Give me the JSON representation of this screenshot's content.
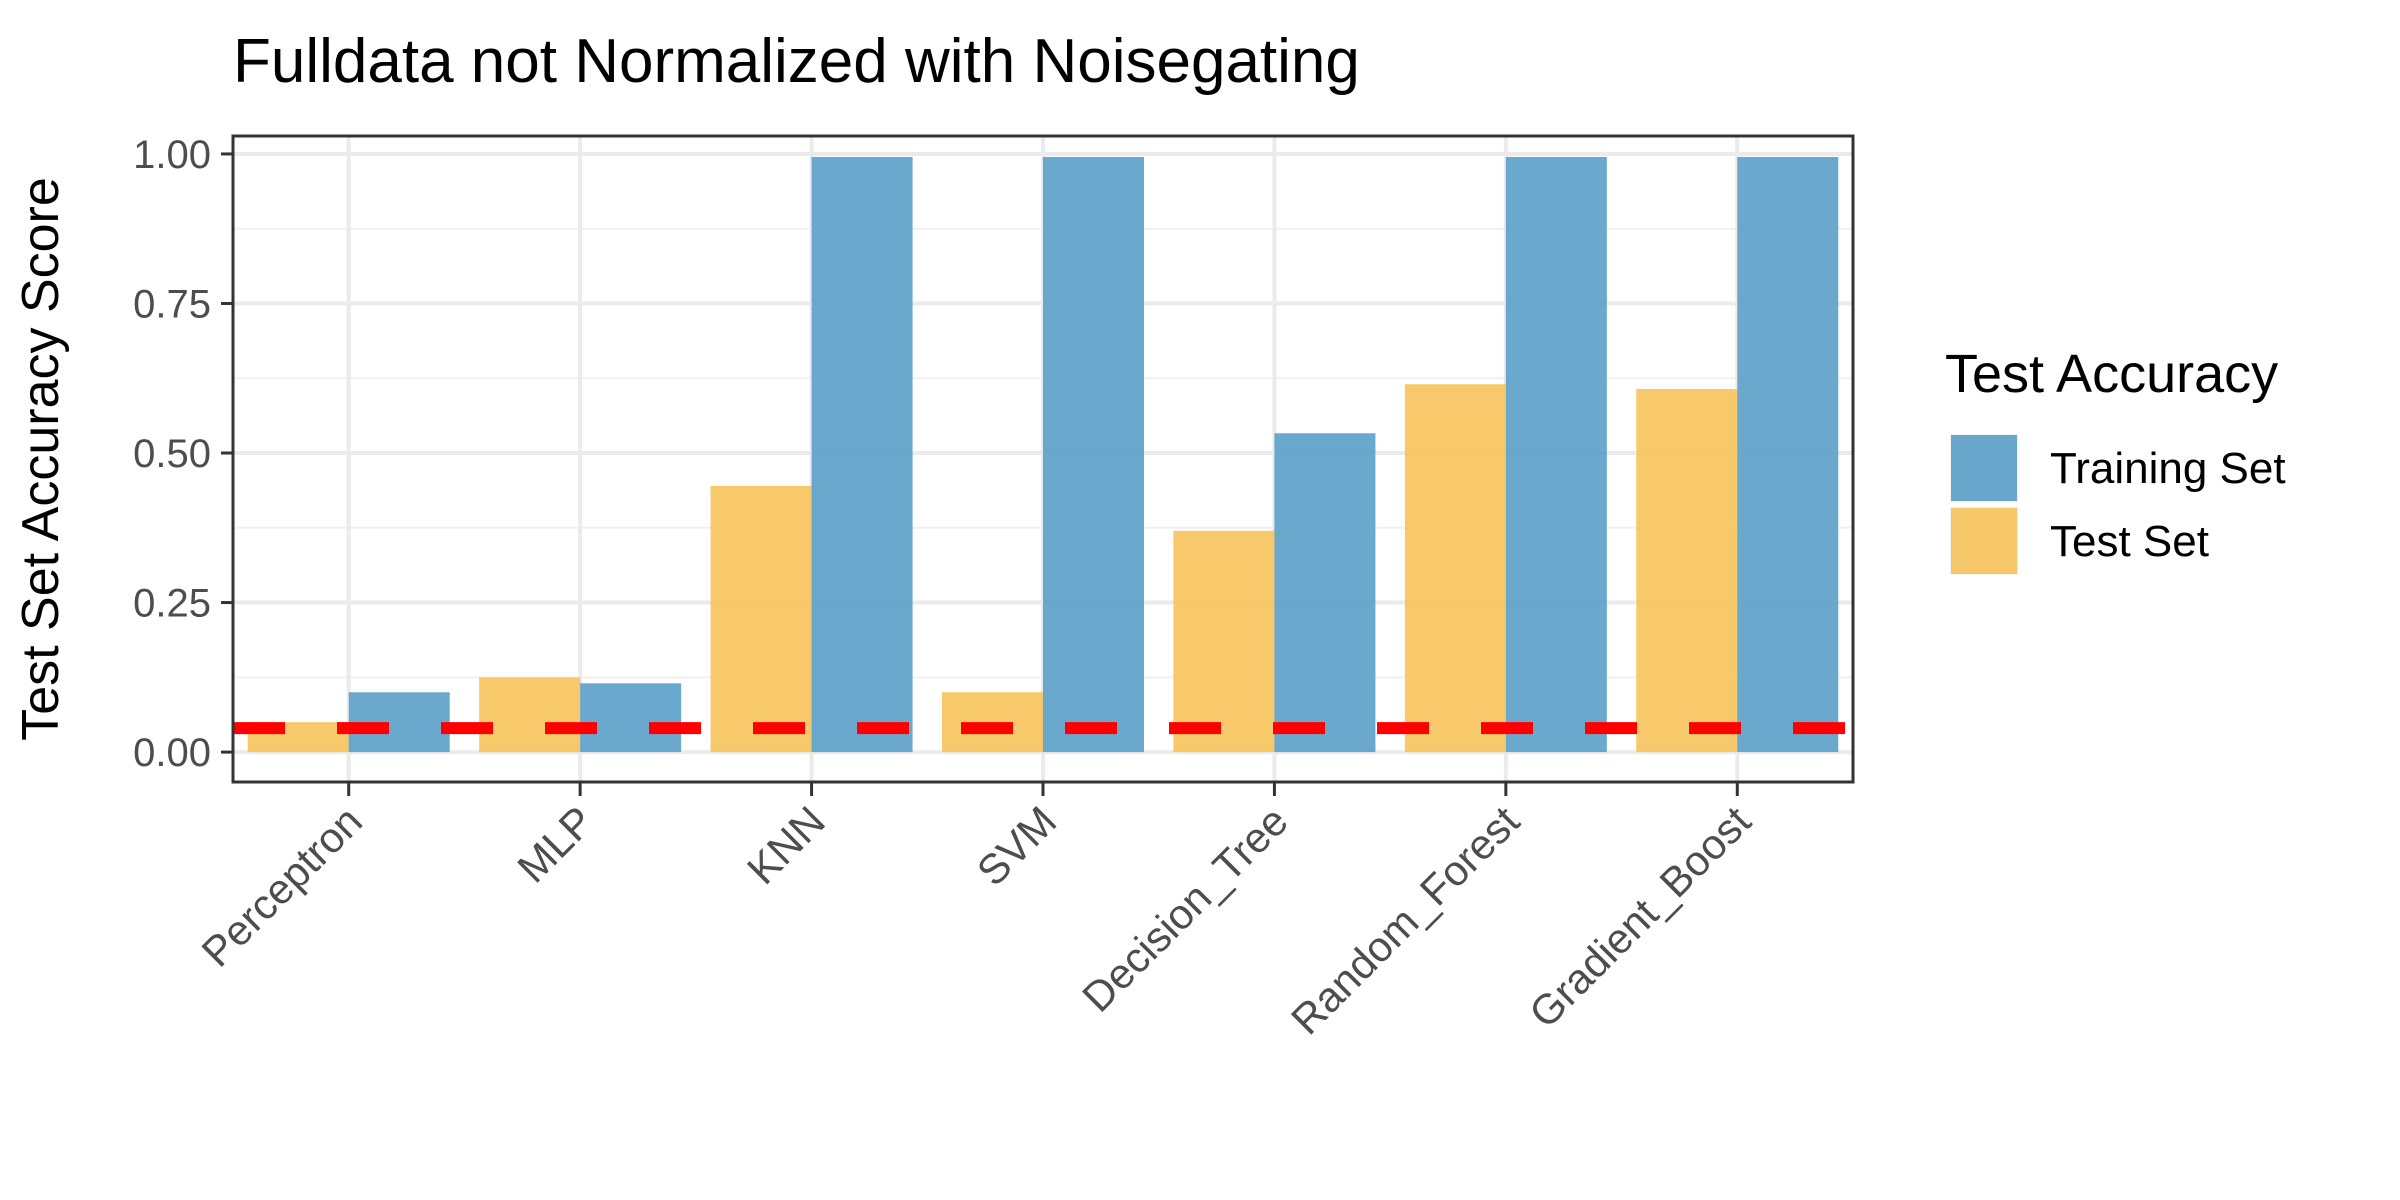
{
  "chart_data": {
    "type": "bar",
    "title": "Fulldata not Normalized with Noisegating",
    "xlabel": "",
    "ylabel": "Test Set Accuracy Score",
    "categories": [
      "Perceptron",
      "MLP",
      "KNN",
      "SVM",
      "Decision_Tree",
      "Random_Forest",
      "Gradient_Boost"
    ],
    "series": [
      {
        "name": "Test Set",
        "color": "#F7C35A",
        "values": [
          0.05,
          0.125,
          0.445,
          0.1,
          0.37,
          0.615,
          0.607
        ]
      },
      {
        "name": "Training Set",
        "color": "#5B9EC9",
        "values": [
          0.1,
          0.115,
          0.995,
          0.995,
          0.533,
          0.995,
          0.995
        ]
      }
    ],
    "ylim": [
      -0.05,
      1.03
    ],
    "yticks": [
      0.0,
      0.25,
      0.5,
      0.75,
      1.0
    ],
    "ytick_labels": [
      "0.00",
      "0.25",
      "0.50",
      "0.75",
      "1.00"
    ],
    "reference_line": {
      "value": 0.04,
      "color": "#FF0000",
      "style": "dashed"
    },
    "legend": {
      "title": "Test Accuracy",
      "placement": "right",
      "entries": [
        {
          "label": "Training Set",
          "color": "#5B9EC9"
        },
        {
          "label": "Test Set",
          "color": "#F7C35A"
        }
      ]
    },
    "grid": true
  }
}
